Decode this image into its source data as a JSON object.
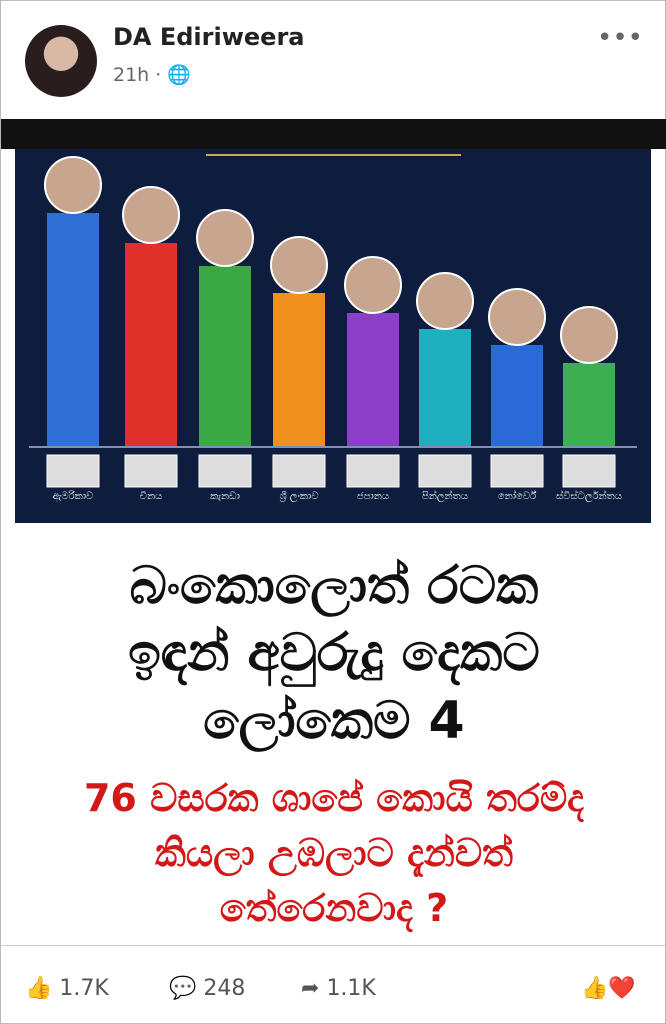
{
  "header": {
    "name": "DA Ediriweera",
    "time": "21h"
  },
  "chart_data": {
    "type": "bar",
    "categories": [
      "ඇමරිකාව",
      "චීනය",
      "කැනඩා",
      "ශ්‍රී ලංකාව",
      "ජපානය",
      "පින්ලන්තය",
      "නෝර්වේ",
      "ස්විස්ටර්ලන්තය"
    ],
    "values": [
      233,
      203,
      180,
      153,
      133,
      117,
      101,
      83
    ],
    "colors": [
      "#2f6fd6",
      "#e0302a",
      "#3aa845",
      "#f0901f",
      "#8b3fc8",
      "#1fb0c0",
      "#2a6ad8",
      "#3cb050"
    ],
    "ylim": [
      0,
      250
    ]
  },
  "headline": [
    "බංකොලොත් රටක",
    "ඉඳන් අවුරුදු දෙකට",
    "ලෝකෙම 4"
  ],
  "caption": [
    "76 වසරක ශාපේ කොයි තරම්ද",
    "කියලා උඹලාට දැන්වත්",
    "තේරෙනවාද ?"
  ],
  "footer": {
    "likes": "1.7K",
    "comments": "248",
    "shares": "1.1K"
  }
}
